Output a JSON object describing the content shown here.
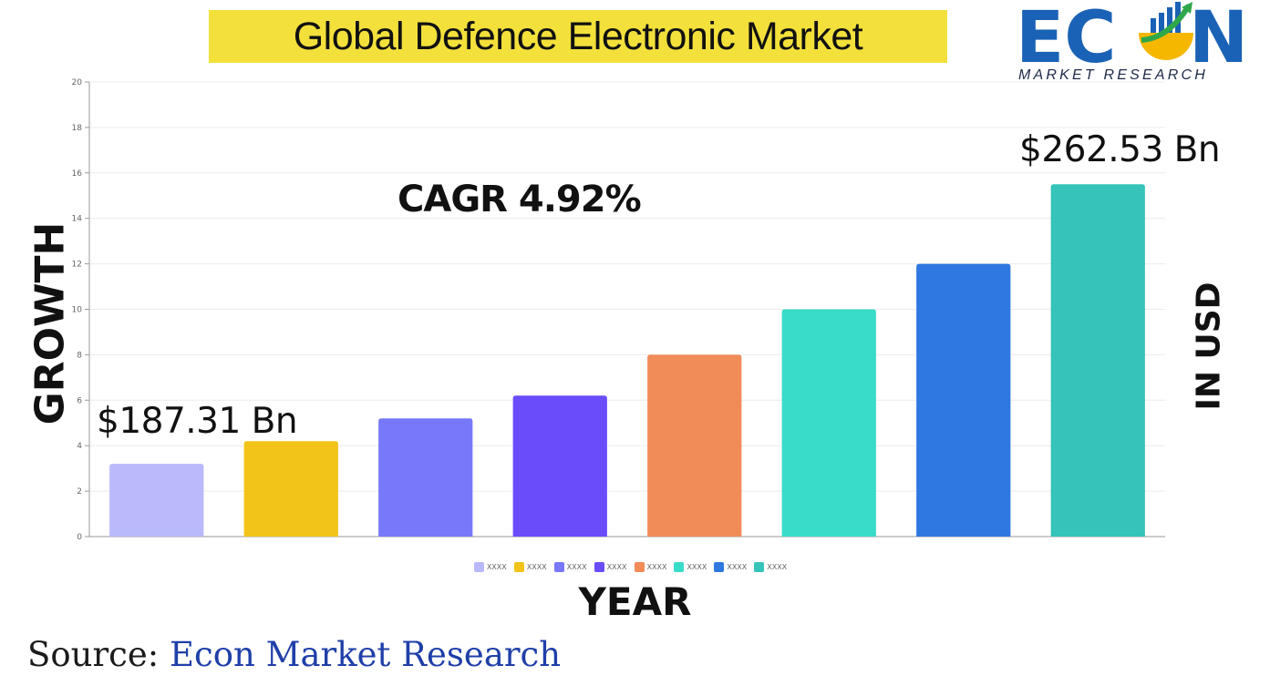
{
  "title": "Global Defence Electronic Market",
  "logo": {
    "main": "ECON",
    "sub": "MARKET RESEARCH",
    "colors": {
      "letters": "#1a62b6",
      "bars": "#1a62b6",
      "bowl": "#f5b700",
      "arrow": "#2ea84a"
    }
  },
  "annotations": {
    "cagr": "CAGR 4.92%",
    "start_value": "$187.31 Bn",
    "end_value": "$262.53 Bn"
  },
  "axes": {
    "ylabel_left": "GROWTH",
    "ylabel_right": "IN USD",
    "xlabel": "YEAR"
  },
  "source": {
    "prefix": "Source: ",
    "name": "Econ Market Research"
  },
  "chart_data": {
    "type": "bar",
    "categories": [
      "XXXX",
      "XXXX",
      "XXXX",
      "XXXX",
      "XXXX",
      "XXXX",
      "XXXX",
      "XXXX"
    ],
    "values": [
      3.2,
      4.2,
      5.2,
      6.2,
      8.0,
      10.0,
      12.0,
      15.5
    ],
    "colors": [
      "#b9b9fb",
      "#f2c318",
      "#7878fa",
      "#6a4cfb",
      "#f18b58",
      "#38dcc9",
      "#2f78e2",
      "#35c3ba"
    ],
    "yticks": [
      0,
      2,
      4,
      6,
      8,
      10,
      12,
      14,
      16,
      18,
      20
    ],
    "ylim": [
      0,
      20
    ],
    "grid": true,
    "legend": "bottom"
  }
}
